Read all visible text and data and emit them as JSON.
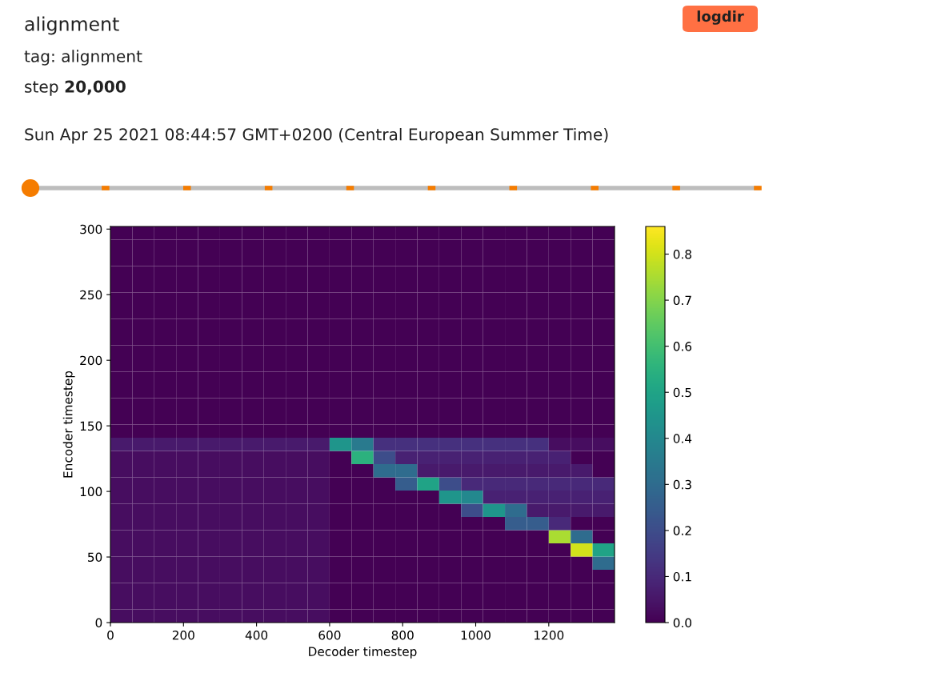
{
  "chart_data": {
    "type": "heatmap",
    "title": "alignment",
    "subtitle": "tag: alignment",
    "annotations": [
      "step 20,000",
      "Sun Apr 25 2021 08:44:57 GMT+0200 (Central European Summer Time)",
      "logdir"
    ],
    "xlabel": "Decoder timestep",
    "ylabel": "Encoder timestep",
    "xlim": [
      0,
      1380
    ],
    "ylim": [
      0,
      302
    ],
    "xticks": [
      0,
      200,
      400,
      600,
      800,
      1000,
      1200
    ],
    "yticks": [
      0,
      50,
      100,
      150,
      200,
      250,
      300
    ],
    "clim": [
      0,
      0.86
    ],
    "cticks": [
      {
        "value": 0,
        "label": "0.0"
      },
      0.1,
      0.2,
      0.3,
      0.4,
      0.5,
      0.6,
      0.7,
      0.8
    ],
    "cells": [
      [
        0,
        0,
        0,
        0,
        0,
        0,
        0,
        0,
        0,
        0,
        0,
        0,
        0,
        0,
        0,
        0,
        0,
        0,
        0,
        0,
        0,
        0,
        0
      ],
      [
        0,
        0,
        0,
        0,
        0,
        0,
        0,
        0,
        0,
        0,
        0,
        0,
        0,
        0,
        0,
        0,
        0,
        0,
        0,
        0,
        0,
        0,
        0
      ],
      [
        0,
        0,
        0,
        0,
        0,
        0,
        0,
        0,
        0,
        0,
        0,
        0,
        0,
        0,
        0,
        0,
        0,
        0,
        0,
        0,
        0,
        0,
        0
      ],
      [
        0,
        0,
        0,
        0,
        0,
        0,
        0,
        0,
        0,
        0,
        0,
        0,
        0,
        0,
        0,
        0,
        0,
        0,
        0,
        0,
        0,
        0,
        0
      ],
      [
        0,
        0,
        0,
        0,
        0,
        0,
        0,
        0,
        0,
        0,
        0,
        0,
        0,
        0,
        0,
        0,
        0,
        0,
        0,
        0,
        0,
        0,
        0
      ],
      [
        0,
        0,
        0,
        0,
        0,
        0,
        0,
        0,
        0,
        0,
        0,
        0,
        0,
        0,
        0,
        0,
        0,
        0,
        0,
        0,
        0,
        0,
        0
      ],
      [
        0,
        0,
        0,
        0,
        0,
        0,
        0,
        0,
        0,
        0,
        0,
        0,
        0,
        0,
        0,
        0,
        0,
        0,
        0,
        0,
        0,
        0,
        0
      ],
      [
        0,
        0,
        0,
        0,
        0,
        0,
        0,
        0,
        0,
        0,
        0,
        0,
        0,
        0,
        0,
        0,
        0,
        0,
        0,
        0,
        0,
        0,
        0
      ],
      [
        0,
        0,
        0,
        0,
        0,
        0,
        0,
        0,
        0,
        0,
        0,
        0,
        0,
        0,
        0,
        0,
        0,
        0,
        0,
        0,
        0,
        0,
        0
      ],
      [
        0,
        0,
        0,
        0,
        0,
        0,
        0,
        0,
        0,
        0,
        0,
        0,
        0,
        0,
        0,
        0,
        0,
        0,
        0,
        0,
        0,
        0,
        0
      ],
      [
        0,
        0,
        0,
        0,
        0,
        0,
        0,
        0,
        0,
        0,
        0,
        0,
        0,
        0,
        0,
        0,
        0,
        0,
        0,
        0,
        0,
        0,
        0
      ],
      [
        0,
        0,
        0,
        0,
        0,
        0,
        0,
        0,
        0,
        0,
        0,
        0,
        0,
        0,
        0,
        0,
        0,
        0,
        0,
        0,
        0,
        0,
        0
      ],
      [
        0,
        0,
        0,
        0,
        0,
        0,
        0,
        0,
        0,
        0,
        0,
        0,
        0,
        0,
        0,
        0,
        0,
        0,
        0,
        0,
        0,
        0,
        0
      ],
      [
        0,
        0,
        0,
        0,
        0,
        0,
        0,
        0,
        0,
        0,
        0,
        0,
        0,
        0,
        0,
        0,
        0,
        0,
        0,
        0,
        0,
        0,
        0
      ],
      [
        0,
        0,
        0,
        0,
        0,
        0,
        0,
        0,
        0,
        0,
        0,
        0,
        0,
        0,
        0,
        0,
        0,
        0,
        0,
        0,
        0,
        0,
        0
      ],
      [
        0,
        0,
        0,
        0,
        0,
        0,
        0,
        0,
        0,
        0,
        0,
        0,
        0,
        0,
        0,
        0,
        0,
        0,
        0,
        0,
        0,
        0,
        0
      ],
      [
        0.06,
        0.06,
        0.06,
        0.06,
        0.06,
        0.06,
        0.06,
        0.06,
        0.06,
        0.06,
        0.45,
        0.35,
        0.12,
        0.12,
        0.12,
        0.12,
        0.12,
        0.12,
        0.12,
        0.12,
        0.03,
        0.03,
        0.03
      ],
      [
        0.03,
        0.03,
        0.03,
        0.03,
        0.03,
        0.03,
        0.03,
        0.03,
        0.03,
        0.03,
        0,
        0.55,
        0.2,
        0.08,
        0.08,
        0.08,
        0.08,
        0.08,
        0.08,
        0.08,
        0.08,
        0,
        0
      ],
      [
        0.03,
        0.03,
        0.03,
        0.03,
        0.03,
        0.03,
        0.03,
        0.03,
        0.03,
        0.03,
        0,
        0,
        0.3,
        0.3,
        0.06,
        0.06,
        0.06,
        0.06,
        0.06,
        0.06,
        0.06,
        0.06,
        0
      ],
      [
        0.03,
        0.03,
        0.03,
        0.03,
        0.03,
        0.03,
        0.03,
        0.03,
        0.03,
        0.03,
        0,
        0,
        0,
        0.25,
        0.5,
        0.2,
        0.1,
        0.1,
        0.1,
        0.1,
        0.1,
        0.1,
        0.1
      ],
      [
        0.03,
        0.03,
        0.03,
        0.03,
        0.03,
        0.03,
        0.03,
        0.03,
        0.03,
        0.03,
        0,
        0,
        0,
        0,
        0,
        0.45,
        0.4,
        0.08,
        0.08,
        0.08,
        0.08,
        0.08,
        0.08
      ],
      [
        0.03,
        0.03,
        0.03,
        0.03,
        0.03,
        0.03,
        0.03,
        0.03,
        0.03,
        0.03,
        0,
        0,
        0,
        0,
        0,
        0,
        0.2,
        0.45,
        0.3,
        0.06,
        0.06,
        0.06,
        0.06
      ],
      [
        0.03,
        0.03,
        0.03,
        0.03,
        0.03,
        0.03,
        0.03,
        0.03,
        0.03,
        0.03,
        0,
        0,
        0,
        0,
        0,
        0,
        0,
        0,
        0.25,
        0.25,
        0.1,
        0,
        0
      ],
      [
        0.03,
        0.03,
        0.03,
        0.03,
        0.03,
        0.03,
        0.03,
        0.03,
        0.03,
        0.03,
        0,
        0,
        0,
        0,
        0,
        0,
        0,
        0,
        0,
        0,
        0.75,
        0.3,
        0
      ],
      [
        0.03,
        0.03,
        0.03,
        0.03,
        0.03,
        0.03,
        0.03,
        0.03,
        0.03,
        0.03,
        0,
        0,
        0,
        0,
        0,
        0,
        0,
        0,
        0,
        0,
        0,
        0.8,
        0.5
      ],
      [
        0.03,
        0.03,
        0.03,
        0.03,
        0.03,
        0.03,
        0.03,
        0.03,
        0.03,
        0.03,
        0,
        0,
        0,
        0,
        0,
        0,
        0,
        0,
        0,
        0,
        0,
        0,
        0.3
      ],
      [
        0.03,
        0.03,
        0.03,
        0.03,
        0.03,
        0.03,
        0.03,
        0.03,
        0.03,
        0.03,
        0,
        0,
        0,
        0,
        0,
        0,
        0,
        0,
        0,
        0,
        0,
        0,
        0
      ],
      [
        0.03,
        0.03,
        0.03,
        0.03,
        0.03,
        0.03,
        0.03,
        0.03,
        0.03,
        0.03,
        0,
        0,
        0,
        0,
        0,
        0,
        0,
        0,
        0,
        0,
        0,
        0,
        0
      ],
      [
        0.03,
        0.03,
        0.03,
        0.03,
        0.03,
        0.03,
        0.03,
        0.03,
        0.03,
        0.03,
        0,
        0,
        0,
        0,
        0,
        0,
        0,
        0,
        0,
        0,
        0,
        0,
        0
      ],
      [
        0.03,
        0.03,
        0.03,
        0.03,
        0.03,
        0.03,
        0.03,
        0.03,
        0.03,
        0.03,
        0,
        0,
        0,
        0,
        0,
        0,
        0,
        0,
        0,
        0,
        0,
        0,
        0
      ]
    ]
  }
}
